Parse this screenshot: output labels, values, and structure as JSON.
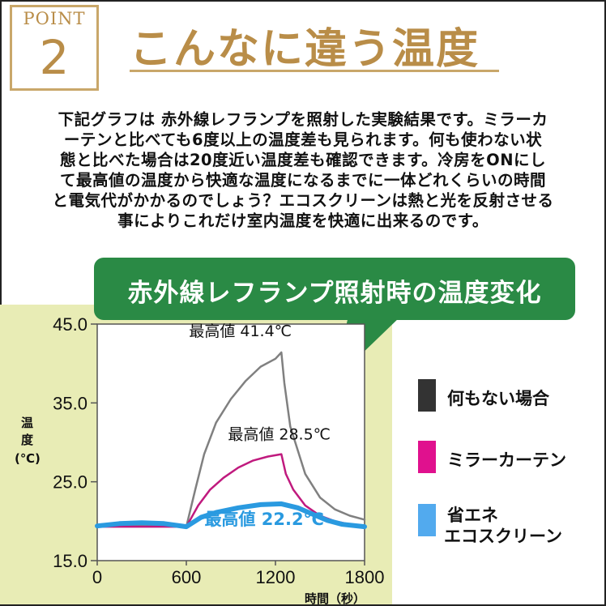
{
  "header": {
    "point_label": "POINT",
    "point_number": "2",
    "title": "こんなに違う温度"
  },
  "intro_lines": [
    "下記グラフは 赤外線レフランプを照射した実験結果です。ミラーカ",
    "ーテンと比べても6度以上の温度差も見られます。何も使わない状",
    "態と比べた場合は20度近い温度差も確認できます。冷房をONにし",
    "て最高値の温度から快適な温度になるまでに一体どれくらいの時間",
    "と電気代がかかるのでしょう？エコスクリーンは熱と光を反射させる",
    "事によりこれだけ室内温度を快適に出来るのです。"
  ],
  "banner": {
    "text": "赤外線レフランプ照射時の温度変化"
  },
  "legend": [
    {
      "label": "何もない場合",
      "color": "#333333"
    },
    {
      "label": "ミラーカーテン",
      "color": "#e0118e"
    },
    {
      "label": "省エネ",
      "label2": "エコスクリーン",
      "color": "#52aaee"
    }
  ],
  "chart_data": {
    "type": "line",
    "xlabel": "時間（秒）",
    "ylabel": "温度 (℃)",
    "xlim": [
      0,
      1800
    ],
    "ylim": [
      15.0,
      45.0
    ],
    "x_ticks": [
      "0",
      "600",
      "1200",
      "1800"
    ],
    "y_ticks": [
      "15.0",
      "25.0",
      "35.0",
      "45.0"
    ],
    "series": [
      {
        "name": "何もない場合",
        "color": "#808080",
        "points": [
          [
            0,
            19.4
          ],
          [
            300,
            19.4
          ],
          [
            600,
            19.3
          ],
          [
            660,
            24.0
          ],
          [
            720,
            28.5
          ],
          [
            800,
            32.5
          ],
          [
            900,
            35.5
          ],
          [
            1000,
            37.8
          ],
          [
            1100,
            39.6
          ],
          [
            1200,
            40.6
          ],
          [
            1240,
            41.4
          ],
          [
            1260,
            37.5
          ],
          [
            1300,
            32.0
          ],
          [
            1400,
            26.0
          ],
          [
            1500,
            23.0
          ],
          [
            1600,
            21.5
          ],
          [
            1700,
            20.7
          ],
          [
            1800,
            20.2
          ]
        ]
      },
      {
        "name": "ミラーカーテン",
        "color": "#c01a7e",
        "points": [
          [
            0,
            19.3
          ],
          [
            300,
            19.3
          ],
          [
            600,
            19.3
          ],
          [
            680,
            22.0
          ],
          [
            760,
            24.0
          ],
          [
            850,
            25.5
          ],
          [
            950,
            26.8
          ],
          [
            1050,
            27.7
          ],
          [
            1150,
            28.2
          ],
          [
            1240,
            28.5
          ],
          [
            1270,
            26.0
          ],
          [
            1320,
            24.0
          ],
          [
            1400,
            22.0
          ],
          [
            1500,
            20.7
          ],
          [
            1600,
            20.0
          ],
          [
            1700,
            19.6
          ],
          [
            1800,
            19.4
          ]
        ]
      },
      {
        "name": "省エネ エコスクリーン",
        "color": "#2a9ae0",
        "points": [
          [
            0,
            19.4
          ],
          [
            150,
            19.7
          ],
          [
            300,
            19.8
          ],
          [
            450,
            19.7
          ],
          [
            600,
            19.3
          ],
          [
            700,
            20.5
          ],
          [
            800,
            21.1
          ],
          [
            950,
            21.7
          ],
          [
            1100,
            22.1
          ],
          [
            1240,
            22.2
          ],
          [
            1350,
            21.7
          ],
          [
            1450,
            20.9
          ],
          [
            1550,
            20.1
          ],
          [
            1650,
            19.6
          ],
          [
            1800,
            19.3
          ]
        ]
      }
    ],
    "annotations": [
      {
        "text": "最高値 41.4℃",
        "x": 1240,
        "y": 41.4,
        "color": "#111111"
      },
      {
        "text": "最高値 28.5℃",
        "x": 1240,
        "y": 28.5,
        "color": "#111111"
      },
      {
        "text": "最高値 22.2℃",
        "x": 1240,
        "y": 22.2,
        "color": "#2a9ae0"
      }
    ]
  }
}
